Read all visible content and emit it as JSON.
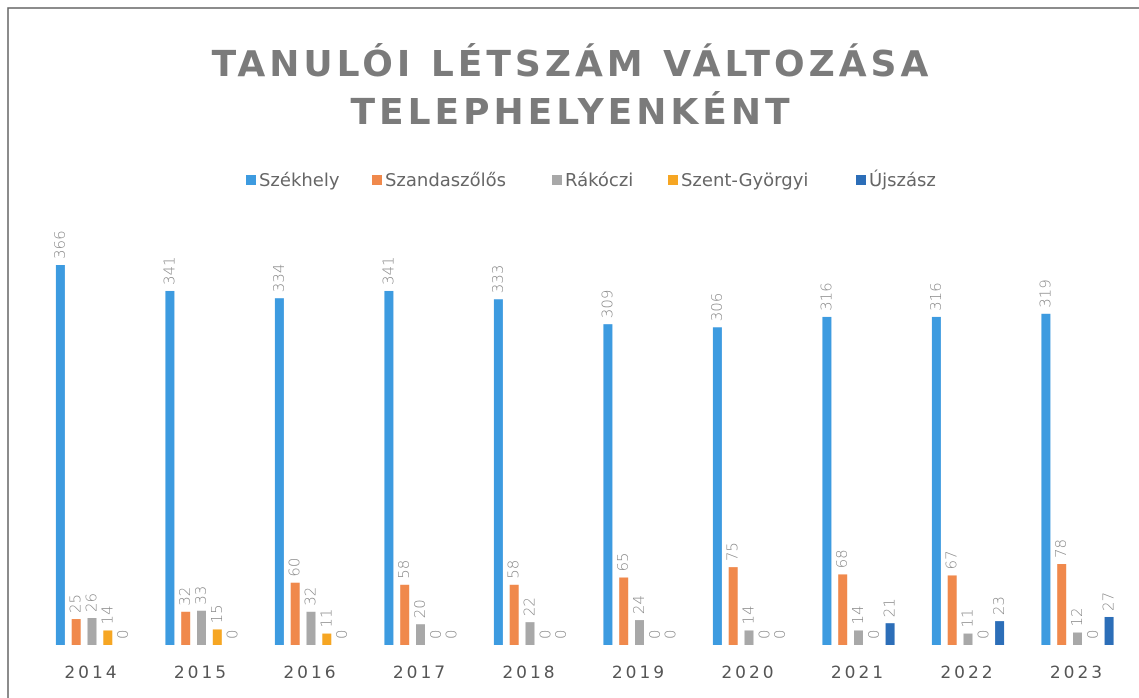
{
  "chart_data": {
    "type": "bar",
    "title": [
      "TANULÓI LÉTSZÁM VÁLTOZÁSA",
      "TELEPHELYENKÉNT"
    ],
    "categories": [
      "2014",
      "2015",
      "2016",
      "2017",
      "2018",
      "2019",
      "2020",
      "2021",
      "2022",
      "2023"
    ],
    "series": [
      {
        "name": "Székhely",
        "color": "#3d9be0",
        "values": [
          366,
          341,
          334,
          341,
          333,
          309,
          306,
          316,
          316,
          319
        ]
      },
      {
        "name": "Szandaszőlős",
        "color": "#f0894c",
        "values": [
          25,
          32,
          60,
          58,
          58,
          65,
          75,
          68,
          67,
          78
        ]
      },
      {
        "name": "Rákóczi",
        "color": "#a8a8a8",
        "values": [
          26,
          33,
          32,
          20,
          22,
          24,
          14,
          14,
          11,
          12
        ]
      },
      {
        "name": "Szent-Györgyi",
        "color": "#f6a623",
        "values": [
          14,
          15,
          11,
          0,
          0,
          0,
          0,
          0,
          0,
          0
        ]
      },
      {
        "name": "Újszász",
        "color": "#2c6eb8",
        "values": [
          0,
          0,
          0,
          0,
          0,
          0,
          0,
          21,
          23,
          27
        ]
      }
    ],
    "legend": "top"
  }
}
